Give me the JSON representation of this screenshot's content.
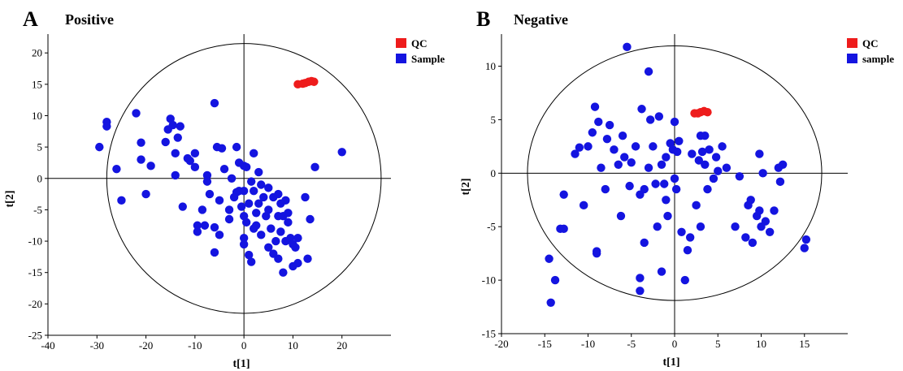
{
  "colors": {
    "qc": "#ee1c1c",
    "sample": "#1414e0",
    "axis": "#000000"
  },
  "chart_data": [
    {
      "type": "scatter",
      "panel_label": "A",
      "title": "Positive",
      "xlabel": "t[1]",
      "ylabel": "t[2]",
      "xlim": [
        -40,
        30
      ],
      "ylim": [
        -25,
        23
      ],
      "xticks": [
        -40,
        -30,
        -20,
        -10,
        0,
        10,
        20
      ],
      "yticks": [
        -25,
        -20,
        -15,
        -10,
        -5,
        0,
        5,
        10,
        15,
        20
      ],
      "ellipse": {
        "rx": 28,
        "ry": 21.5
      },
      "legend": {
        "position": "top-right",
        "items": [
          "QC",
          "Sample"
        ]
      },
      "series": [
        {
          "name": "QC",
          "color": "#ee1c1c",
          "points": [
            [
              11,
              15
            ],
            [
              12.5,
              15.2
            ],
            [
              13.2,
              15.4
            ],
            [
              13.8,
              15.5
            ],
            [
              14.3,
              15.4
            ],
            [
              12,
              15.1
            ]
          ]
        },
        {
          "name": "Sample",
          "color": "#1414e0",
          "points": [
            [
              -29.5,
              5
            ],
            [
              -28,
              9
            ],
            [
              -28,
              8.3
            ],
            [
              -26,
              1.5
            ],
            [
              -25,
              -3.5
            ],
            [
              -22,
              10.4
            ],
            [
              -21,
              5.7
            ],
            [
              -21,
              3
            ],
            [
              -20,
              -2.5
            ],
            [
              -19,
              2
            ],
            [
              -16,
              5.8
            ],
            [
              -15.5,
              7.8
            ],
            [
              -15,
              9.5
            ],
            [
              -14.5,
              8.5
            ],
            [
              -14,
              4
            ],
            [
              -14,
              0.5
            ],
            [
              -13.5,
              6.5
            ],
            [
              -13,
              8.3
            ],
            [
              -12.5,
              -4.5
            ],
            [
              -11.5,
              3.2
            ],
            [
              -11,
              2.8
            ],
            [
              -10,
              4
            ],
            [
              -10,
              1.8
            ],
            [
              -9.5,
              -7.5
            ],
            [
              -9.5,
              -8.5
            ],
            [
              -8.5,
              -5
            ],
            [
              -8,
              -7.5
            ],
            [
              -7.5,
              0.5
            ],
            [
              -7.5,
              -0.5
            ],
            [
              -7,
              -2.5
            ],
            [
              -6,
              12
            ],
            [
              -6,
              -7.8
            ],
            [
              -6,
              -11.8
            ],
            [
              -5.5,
              5
            ],
            [
              -5,
              -3.5
            ],
            [
              -5,
              -9
            ],
            [
              -4.5,
              4.8
            ],
            [
              -4,
              1.5
            ],
            [
              -3,
              -5
            ],
            [
              -3,
              -6.5
            ],
            [
              -2.5,
              0
            ],
            [
              -2,
              -3
            ],
            [
              -1.5,
              5
            ],
            [
              -1.5,
              -2.2
            ],
            [
              -1,
              2.5
            ],
            [
              -1,
              -2
            ],
            [
              -0.5,
              -4.5
            ],
            [
              0,
              2
            ],
            [
              0,
              -2
            ],
            [
              0,
              -6
            ],
            [
              0,
              -9.5
            ],
            [
              0,
              -10.5
            ],
            [
              0.5,
              -7
            ],
            [
              0.5,
              1.8
            ],
            [
              1,
              -4
            ],
            [
              1,
              -12.2
            ],
            [
              1.5,
              -0.5
            ],
            [
              1.5,
              -13.3
            ],
            [
              2,
              4
            ],
            [
              2,
              -2
            ],
            [
              2,
              -8
            ],
            [
              2.5,
              -5.5
            ],
            [
              2.5,
              -7.5
            ],
            [
              3,
              1
            ],
            [
              3,
              -4
            ],
            [
              3.5,
              -1
            ],
            [
              3.5,
              -9
            ],
            [
              4,
              -3
            ],
            [
              4.5,
              -6
            ],
            [
              5,
              -1.5
            ],
            [
              5,
              -5
            ],
            [
              5,
              -11
            ],
            [
              5.5,
              -8
            ],
            [
              6,
              -3
            ],
            [
              6,
              -12
            ],
            [
              6.5,
              -10
            ],
            [
              7,
              -6
            ],
            [
              7,
              -2.5
            ],
            [
              7,
              -12.8
            ],
            [
              7.5,
              -4
            ],
            [
              7.5,
              -8.5
            ],
            [
              8,
              -15
            ],
            [
              8,
              -6
            ],
            [
              8.5,
              -10
            ],
            [
              8.5,
              -3.5
            ],
            [
              9,
              -5.5
            ],
            [
              9,
              -7
            ],
            [
              9.5,
              -9.5
            ],
            [
              10,
              -14
            ],
            [
              10,
              -10.5
            ],
            [
              10.5,
              -11
            ],
            [
              11,
              -9.5
            ],
            [
              11,
              -13.5
            ],
            [
              12.5,
              -3
            ],
            [
              13,
              -12.8
            ],
            [
              13.5,
              -6.5
            ],
            [
              14.5,
              1.8
            ],
            [
              20,
              4.2
            ]
          ]
        }
      ]
    },
    {
      "type": "scatter",
      "panel_label": "B",
      "title": "Negative",
      "xlabel": "t[1]",
      "ylabel": "t[2]",
      "xlim": [
        -20,
        20
      ],
      "ylim": [
        -15,
        13
      ],
      "xticks": [
        -20,
        -15,
        -10,
        -5,
        0,
        5,
        10,
        15
      ],
      "yticks": [
        -15,
        -10,
        -5,
        0,
        5,
        10
      ],
      "ellipse": {
        "rx": 17,
        "ry": 11.9
      },
      "legend": {
        "position": "top-right",
        "items": [
          "QC",
          "sample"
        ]
      },
      "series": [
        {
          "name": "QC",
          "color": "#ee1c1c",
          "points": [
            [
              2.3,
              5.6
            ],
            [
              2.7,
              5.6
            ],
            [
              3,
              5.7
            ],
            [
              3.4,
              5.8
            ],
            [
              3.8,
              5.7
            ]
          ]
        },
        {
          "name": "sample",
          "color": "#1414e0",
          "points": [
            [
              -14.5,
              -8
            ],
            [
              -14.3,
              -12.1
            ],
            [
              -13.8,
              -10
            ],
            [
              -13.2,
              -5.2
            ],
            [
              -12.8,
              -5.2
            ],
            [
              -12.8,
              -2
            ],
            [
              -11.5,
              1.8
            ],
            [
              -11,
              2.4
            ],
            [
              -10.5,
              -3
            ],
            [
              -10,
              2.5
            ],
            [
              -9.5,
              3.8
            ],
            [
              -9.2,
              6.2
            ],
            [
              -9,
              -7.3
            ],
            [
              -9,
              -7.5
            ],
            [
              -8.8,
              4.8
            ],
            [
              -8.5,
              0.5
            ],
            [
              -8,
              -1.5
            ],
            [
              -7.8,
              3.2
            ],
            [
              -7.5,
              4.5
            ],
            [
              -7,
              2.2
            ],
            [
              -6.5,
              0.8
            ],
            [
              -6.2,
              -4
            ],
            [
              -6,
              3.5
            ],
            [
              -5.8,
              1.5
            ],
            [
              -5.5,
              11.8
            ],
            [
              -5.2,
              -1.2
            ],
            [
              -5,
              1
            ],
            [
              -4.5,
              2.5
            ],
            [
              -4,
              -2
            ],
            [
              -4,
              -9.8
            ],
            [
              -4,
              -11
            ],
            [
              -3.8,
              6
            ],
            [
              -3.5,
              -1.5
            ],
            [
              -3.5,
              -6.5
            ],
            [
              -3,
              9.5
            ],
            [
              -3,
              0.5
            ],
            [
              -2.8,
              5
            ],
            [
              -2.5,
              2.5
            ],
            [
              -2.2,
              -1
            ],
            [
              -2,
              -5
            ],
            [
              -1.8,
              5.3
            ],
            [
              -1.5,
              -9.2
            ],
            [
              -1.5,
              0.8
            ],
            [
              -1.2,
              -1
            ],
            [
              -1,
              1.5
            ],
            [
              -1,
              -2.5
            ],
            [
              -0.8,
              -4
            ],
            [
              -0.5,
              2.8
            ],
            [
              -0.2,
              2.2
            ],
            [
              0,
              -0.5
            ],
            [
              0,
              4.8
            ],
            [
              0.2,
              -1.5
            ],
            [
              0.3,
              2
            ],
            [
              0.5,
              3
            ],
            [
              0.8,
              -5.5
            ],
            [
              1.2,
              -10
            ],
            [
              1.5,
              -7.2
            ],
            [
              1.8,
              -6
            ],
            [
              2,
              1.8
            ],
            [
              2.5,
              -3
            ],
            [
              2.8,
              1.2
            ],
            [
              3,
              -5
            ],
            [
              3,
              3.5
            ],
            [
              3.2,
              2
            ],
            [
              3.5,
              0.8
            ],
            [
              3.5,
              3.5
            ],
            [
              3.8,
              -1.5
            ],
            [
              4,
              2.2
            ],
            [
              4.5,
              -0.5
            ],
            [
              4.8,
              1.5
            ],
            [
              5,
              0.2
            ],
            [
              5.5,
              2.5
            ],
            [
              6,
              0.5
            ],
            [
              7,
              -5
            ],
            [
              7.5,
              -0.3
            ],
            [
              8.2,
              -6
            ],
            [
              8.5,
              -3
            ],
            [
              8.8,
              -2.5
            ],
            [
              9,
              -6.5
            ],
            [
              9.5,
              -4
            ],
            [
              9.8,
              -3.5
            ],
            [
              9.8,
              1.8
            ],
            [
              10,
              -5
            ],
            [
              10.2,
              0
            ],
            [
              10.5,
              -4.5
            ],
            [
              11,
              -5.5
            ],
            [
              11.5,
              -3.5
            ],
            [
              12,
              0.5
            ],
            [
              12.2,
              -0.8
            ],
            [
              12.5,
              0.8
            ],
            [
              15,
              -7
            ],
            [
              15.2,
              -6.2
            ]
          ]
        }
      ]
    }
  ]
}
